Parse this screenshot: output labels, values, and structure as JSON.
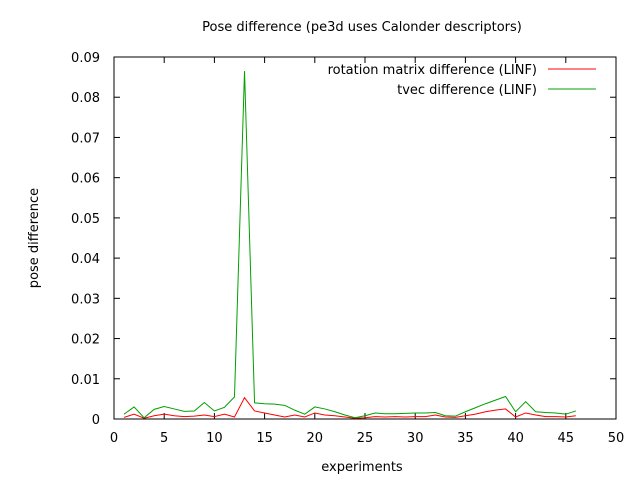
{
  "chart_data": {
    "type": "line",
    "title": "Pose difference (pe3d uses Calonder descriptors)",
    "xlabel": "experiments",
    "ylabel": "pose difference",
    "xlim": [
      0,
      50
    ],
    "ylim": [
      0,
      0.09
    ],
    "x_ticks": [
      0,
      5,
      10,
      15,
      20,
      25,
      30,
      35,
      40,
      45,
      50
    ],
    "y_ticks": [
      0,
      0.01,
      0.02,
      0.03,
      0.04,
      0.05,
      0.06,
      0.07,
      0.08,
      0.09
    ],
    "x_tick_labels": [
      "0",
      "5",
      "10",
      "15",
      "20",
      "25",
      "30",
      "35",
      "40",
      "45",
      "50"
    ],
    "y_tick_labels": [
      "0",
      "0.01",
      "0.02",
      "0.03",
      "0.04",
      "0.05",
      "0.06",
      "0.07",
      "0.08",
      "0.09"
    ],
    "grid": false,
    "legend_position": "top-right",
    "series": [
      {
        "name": "rotation matrix difference (LINF)",
        "color": "#ff0000",
        "x": [
          1,
          2,
          3,
          4,
          5,
          6,
          7,
          8,
          9,
          10,
          11,
          12,
          13,
          14,
          15,
          16,
          17,
          18,
          19,
          20,
          21,
          22,
          23,
          24,
          25,
          26,
          27,
          28,
          29,
          30,
          31,
          32,
          33,
          34,
          35,
          36,
          37,
          38,
          39,
          40,
          41,
          42,
          43,
          44,
          45,
          46
        ],
        "y": [
          0.0004,
          0.0012,
          0.0002,
          0.0008,
          0.0012,
          0.0008,
          0.0006,
          0.0007,
          0.001,
          0.0006,
          0.0012,
          0.0005,
          0.0053,
          0.002,
          0.0015,
          0.001,
          0.0005,
          0.001,
          0.0005,
          0.0015,
          0.001,
          0.0008,
          0.0005,
          0.0002,
          0.0003,
          0.0006,
          0.0005,
          0.0006,
          0.0005,
          0.0006,
          0.0006,
          0.001,
          0.0005,
          0.0004,
          0.0008,
          0.0012,
          0.0018,
          0.0022,
          0.0025,
          0.0005,
          0.0015,
          0.001,
          0.0006,
          0.0006,
          0.0005,
          0.0008
        ]
      },
      {
        "name": "tvec difference (LINF)",
        "color": "#00a000",
        "x": [
          1,
          2,
          3,
          4,
          5,
          6,
          7,
          8,
          9,
          10,
          11,
          12,
          13,
          14,
          15,
          16,
          17,
          18,
          19,
          20,
          21,
          22,
          23,
          24,
          25,
          26,
          27,
          28,
          29,
          30,
          31,
          32,
          33,
          34,
          35,
          36,
          37,
          38,
          39,
          40,
          41,
          42,
          43,
          44,
          45,
          46
        ],
        "y": [
          0.0012,
          0.003,
          0.0003,
          0.0024,
          0.0031,
          0.0025,
          0.0019,
          0.002,
          0.0041,
          0.002,
          0.0029,
          0.0055,
          0.0865,
          0.004,
          0.0038,
          0.0037,
          0.0034,
          0.0022,
          0.0012,
          0.003,
          0.0025,
          0.0018,
          0.001,
          0.0003,
          0.0008,
          0.0015,
          0.0013,
          0.0013,
          0.0014,
          0.0015,
          0.0015,
          0.0016,
          0.0008,
          0.0007,
          0.0018,
          0.0028,
          0.0038,
          0.0047,
          0.0056,
          0.0018,
          0.0043,
          0.0018,
          0.0016,
          0.0015,
          0.0012,
          0.002
        ]
      }
    ]
  }
}
